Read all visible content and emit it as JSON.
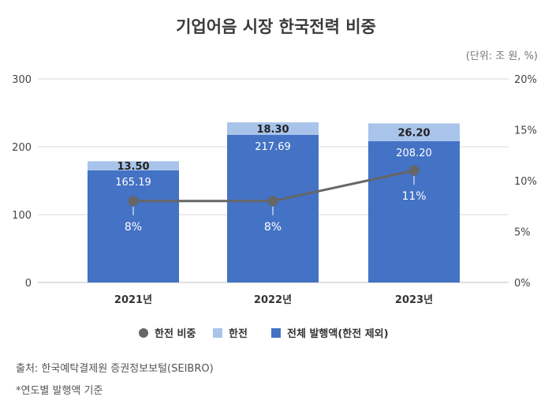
{
  "header": {
    "title": "기업어음 시장 한국전력 비중",
    "unit": "(단위: 조 원, %)"
  },
  "footer": {
    "source": "출처: 한국예탁결제원 증권정보보털(SEIBRO)",
    "note": "*연도별 발행액 기준"
  },
  "colors": {
    "base": "#4472c4",
    "kepco": "#a9c4ea",
    "line": "#666666",
    "grid": "#d9d9d9"
  },
  "chart_data": {
    "type": "bar",
    "stacked": true,
    "categories": [
      "2021년",
      "2022년",
      "2023년"
    ],
    "series": [
      {
        "name": "전체 발행액(한전 제외)",
        "values": [
          165.19,
          217.69,
          208.2
        ],
        "labels": [
          "165.19",
          "217.69",
          "208.20"
        ],
        "axis": "left"
      },
      {
        "name": "한전",
        "values": [
          13.5,
          18.3,
          26.2
        ],
        "labels": [
          "13.50",
          "18.30",
          "26.20"
        ],
        "axis": "left"
      },
      {
        "name": "한전 비중",
        "type": "line",
        "values": [
          8,
          8,
          11
        ],
        "labels": [
          "8%",
          "8%",
          "11%"
        ],
        "axis": "right"
      }
    ],
    "y_left": {
      "ticks": [
        0,
        100,
        200,
        300
      ],
      "tick_labels": [
        "0",
        "100",
        "200",
        "300"
      ],
      "ylim": [
        0,
        300
      ]
    },
    "y_right": {
      "ticks": [
        0,
        5,
        10,
        15,
        20
      ],
      "tick_labels": [
        "0%",
        "5%",
        "10%",
        "15%",
        "20%"
      ],
      "ylim": [
        0,
        20
      ]
    },
    "legend": {
      "position": "bottom",
      "items": [
        "한전 비중",
        "한전",
        "전체 발행액(한전 제외)"
      ]
    },
    "grid": true
  }
}
